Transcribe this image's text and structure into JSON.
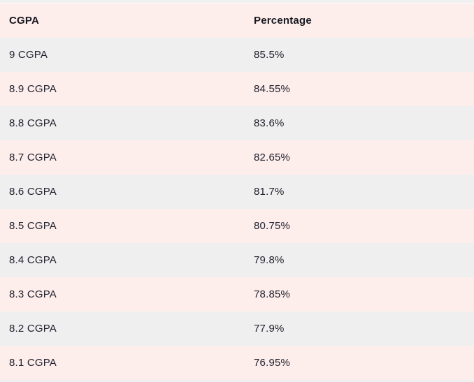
{
  "table": {
    "columns": [
      "CGPA",
      "Percentage"
    ],
    "rows": [
      {
        "cgpa": "9 CGPA",
        "percentage": "85.5%"
      },
      {
        "cgpa": "8.9 CGPA",
        "percentage": "84.55%"
      },
      {
        "cgpa": "8.8 CGPA",
        "percentage": "83.6%"
      },
      {
        "cgpa": "8.7 CGPA",
        "percentage": "82.65%"
      },
      {
        "cgpa": "8.6 CGPA",
        "percentage": "81.7%"
      },
      {
        "cgpa": "8.5 CGPA",
        "percentage": "80.75%"
      },
      {
        "cgpa": "8.4 CGPA",
        "percentage": "79.8%"
      },
      {
        "cgpa": "8.3 CGPA",
        "percentage": "78.85%"
      },
      {
        "cgpa": "8.2 CGPA",
        "percentage": "77.9%"
      },
      {
        "cgpa": "8.1 CGPA",
        "percentage": "76.95%"
      }
    ],
    "colors": {
      "row_pink": "#fdeeec",
      "row_gray": "#efefef",
      "text": "#21212e"
    }
  },
  "chart_data": {
    "type": "table",
    "title": "",
    "columns": [
      "CGPA",
      "Percentage"
    ],
    "categories": [
      "9 CGPA",
      "8.9 CGPA",
      "8.8 CGPA",
      "8.7 CGPA",
      "8.6 CGPA",
      "8.5 CGPA",
      "8.4 CGPA",
      "8.3 CGPA",
      "8.2 CGPA",
      "8.1 CGPA"
    ],
    "values": [
      85.5,
      84.55,
      83.6,
      82.65,
      81.7,
      80.75,
      79.8,
      78.85,
      77.9,
      76.95
    ],
    "value_unit": "%",
    "layout": "alternating pink/gray striped rows, header row pink bold"
  }
}
